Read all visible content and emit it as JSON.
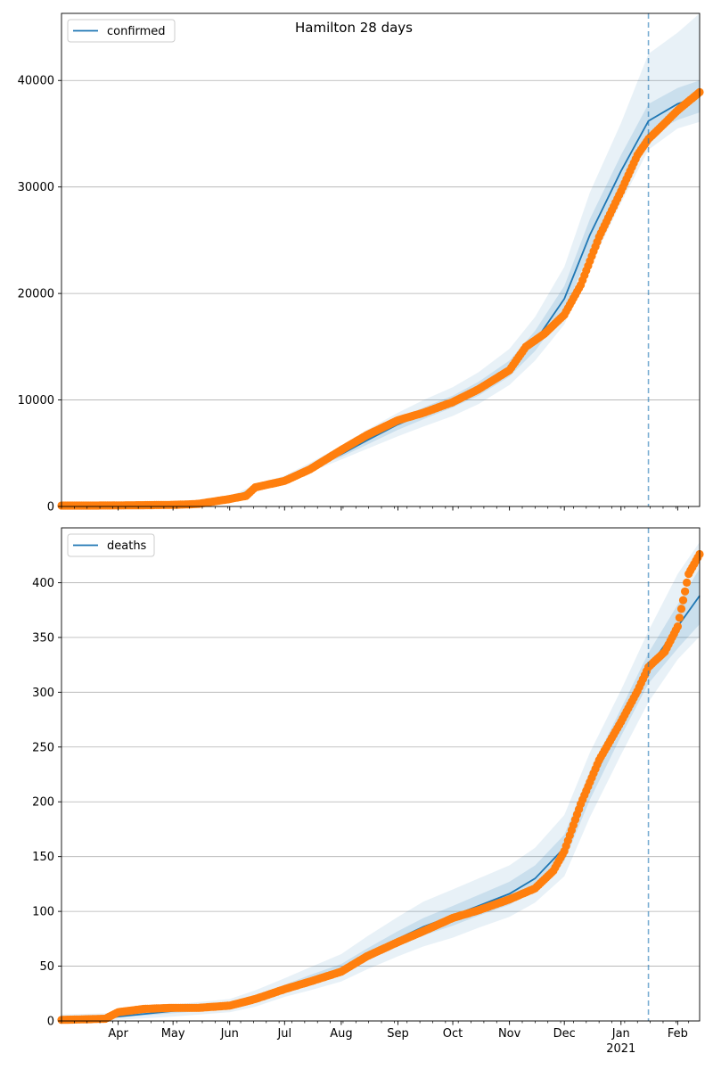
{
  "title": "Hamilton 28 days",
  "chart_data": [
    {
      "type": "line",
      "title": "Hamilton 28 days",
      "legend": {
        "label": "confirmed",
        "position": "top-left"
      },
      "ylim": [
        0,
        46300
      ],
      "yticks": [
        0,
        10000,
        20000,
        30000,
        40000
      ],
      "grid": "y",
      "forecast_start": "2021-01-16",
      "model_line": {
        "name": "confirmed",
        "dates": [
          "2020-03-01",
          "2020-04-01",
          "2020-05-01",
          "2020-06-01",
          "2020-06-15",
          "2020-07-01",
          "2020-07-15",
          "2020-08-01",
          "2020-08-15",
          "2020-09-01",
          "2020-09-15",
          "2020-10-01",
          "2020-10-15",
          "2020-11-01",
          "2020-11-15",
          "2020-12-01",
          "2020-12-15",
          "2021-01-01",
          "2021-01-16",
          "2021-02-01",
          "2021-02-13"
        ],
        "values": [
          0,
          60,
          200,
          750,
          1700,
          2500,
          3500,
          4900,
          6200,
          7700,
          8700,
          9800,
          11000,
          12900,
          15500,
          19500,
          25500,
          31500,
          36200,
          37800,
          38500
        ],
        "bands": {
          "inner": [
            0,
            80,
            260,
            900,
            1900,
            2650,
            3600,
            4650,
            5800,
            7200,
            8200,
            9300,
            10400,
            12200,
            14600,
            18300,
            24000,
            30000,
            34800,
            36300,
            37000
          ],
          "inner_upper": [
            0,
            80,
            260,
            900,
            1950,
            2750,
            3850,
            5300,
            6700,
            8200,
            9300,
            10400,
            11700,
            13700,
            16500,
            20700,
            27000,
            33000,
            37800,
            39300,
            40000
          ],
          "outer_lower": [
            0,
            40,
            160,
            650,
            1500,
            2300,
            3250,
            4400,
            5400,
            6600,
            7500,
            8500,
            9600,
            11400,
            13700,
            17100,
            22500,
            28500,
            33500,
            35500,
            36100
          ],
          "outer_upper": [
            0,
            90,
            300,
            950,
            2050,
            2900,
            4100,
            5700,
            7200,
            8800,
            10000,
            11200,
            12600,
            14800,
            17800,
            22500,
            29500,
            36000,
            42500,
            44500,
            46300
          ]
        }
      },
      "observed": {
        "dates": [
          "2020-03-01",
          "2020-03-15",
          "2020-04-01",
          "2020-04-15",
          "2020-05-01",
          "2020-05-10",
          "2020-05-15",
          "2020-06-01",
          "2020-06-10",
          "2020-06-15",
          "2020-07-01",
          "2020-07-15",
          "2020-08-01",
          "2020-08-15",
          "2020-09-01",
          "2020-09-15",
          "2020-10-01",
          "2020-10-15",
          "2020-11-01",
          "2020-11-10",
          "2020-11-20",
          "2020-12-01",
          "2020-12-10",
          "2020-12-20",
          "2021-01-01",
          "2021-01-10",
          "2021-01-16",
          "2021-01-25",
          "2021-02-01",
          "2021-02-13"
        ],
        "values": [
          80,
          80,
          100,
          120,
          150,
          200,
          250,
          700,
          1000,
          1800,
          2400,
          3500,
          5300,
          6700,
          8100,
          8800,
          9800,
          11000,
          12800,
          15000,
          16200,
          18000,
          20800,
          25300,
          29600,
          33000,
          34500,
          36000,
          37200,
          38900
        ]
      }
    },
    {
      "type": "line",
      "legend": {
        "label": "deaths",
        "position": "top-left"
      },
      "ylim": [
        0,
        450
      ],
      "yticks": [
        0,
        50,
        100,
        150,
        200,
        250,
        300,
        350,
        400
      ],
      "grid": "y",
      "forecast_start": "2021-01-16",
      "x_tick_labels": [
        "Apr",
        "May",
        "Jun",
        "Jul",
        "Aug",
        "Sep",
        "Oct",
        "Nov",
        "Dec",
        "Jan",
        "Feb"
      ],
      "x_tick_dates": [
        "2020-04-01",
        "2020-05-01",
        "2020-06-01",
        "2020-07-01",
        "2020-08-01",
        "2020-09-01",
        "2020-10-01",
        "2020-11-01",
        "2020-12-01",
        "2021-01-01",
        "2021-02-01"
      ],
      "x_year_label": "2021",
      "model_line": {
        "name": "deaths",
        "dates": [
          "2020-03-01",
          "2020-03-25",
          "2020-04-01",
          "2020-05-01",
          "2020-06-01",
          "2020-06-15",
          "2020-07-01",
          "2020-07-15",
          "2020-08-01",
          "2020-08-15",
          "2020-09-01",
          "2020-09-15",
          "2020-10-01",
          "2020-10-15",
          "2020-11-01",
          "2020-11-15",
          "2020-12-01",
          "2020-12-15",
          "2021-01-01",
          "2021-01-16",
          "2021-02-01",
          "2021-02-13"
        ],
        "values": [
          0,
          2,
          4,
          9,
          13,
          20,
          30,
          38,
          47,
          60,
          75,
          86,
          96,
          105,
          116,
          130,
          158,
          215,
          272,
          322,
          360,
          388
        ],
        "bands": {
          "inner": [
            0,
            1,
            3,
            7,
            11,
            17,
            27,
            34,
            43,
            55,
            68,
            78,
            87,
            96,
            106,
            120,
            146,
            202,
            260,
            308,
            340,
            362
          ],
          "inner_upper": [
            2,
            3,
            6,
            11,
            15,
            23,
            33,
            42,
            52,
            66,
            82,
            94,
            105,
            115,
            127,
            142,
            170,
            228,
            285,
            336,
            380,
            413
          ],
          "outer_lower": [
            0,
            0,
            1,
            4,
            8,
            13,
            22,
            28,
            36,
            47,
            59,
            68,
            76,
            85,
            95,
            108,
            132,
            186,
            243,
            291,
            330,
            351
          ],
          "outer_upper": [
            6,
            7,
            9,
            15,
            20,
            28,
            39,
            49,
            61,
            77,
            95,
            109,
            120,
            130,
            142,
            158,
            188,
            245,
            302,
            356,
            408,
            437
          ]
        }
      },
      "observed": {
        "dates": [
          "2020-03-01",
          "2020-03-25",
          "2020-04-01",
          "2020-04-15",
          "2020-05-01",
          "2020-05-15",
          "2020-06-01",
          "2020-06-15",
          "2020-07-01",
          "2020-07-15",
          "2020-08-01",
          "2020-08-15",
          "2020-09-01",
          "2020-09-15",
          "2020-10-01",
          "2020-10-15",
          "2020-11-01",
          "2020-11-15",
          "2020-11-25",
          "2020-12-01",
          "2020-12-10",
          "2020-12-20",
          "2021-01-01",
          "2021-01-10",
          "2021-01-16",
          "2021-01-25",
          "2021-02-01",
          "2021-02-07",
          "2021-02-13"
        ],
        "values": [
          1,
          2,
          8,
          11,
          12,
          12,
          14,
          20,
          29,
          36,
          45,
          59,
          72,
          82,
          94,
          101,
          111,
          121,
          137,
          155,
          198,
          238,
          273,
          301,
          323,
          337,
          360,
          408,
          426
        ]
      }
    }
  ]
}
